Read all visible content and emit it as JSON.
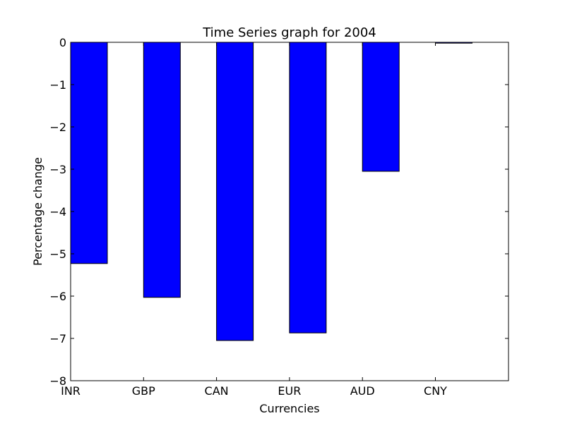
{
  "chart_data": {
    "type": "bar",
    "title": "Time Series graph for 2004",
    "xlabel": "Currencies",
    "ylabel": "Percentage change",
    "categories": [
      "INR",
      "GBP",
      "CAN",
      "EUR",
      "AUD",
      "CNY"
    ],
    "values": [
      -5.23,
      -6.03,
      -7.05,
      -6.87,
      -3.05,
      -0.02
    ],
    "ylim": [
      -8,
      0
    ],
    "yticks": [
      0,
      -1,
      -2,
      -3,
      -4,
      -5,
      -6,
      -7,
      -8
    ],
    "ytick_labels": [
      "0",
      "−1",
      "−2",
      "−3",
      "−4",
      "−5",
      "−6",
      "−7",
      "−8"
    ],
    "grid": false,
    "legend": "none",
    "colors": {
      "bar_fill": "#0000ff",
      "bar_edge": "#000000",
      "axes": "#000000",
      "background": "#ffffff"
    }
  }
}
